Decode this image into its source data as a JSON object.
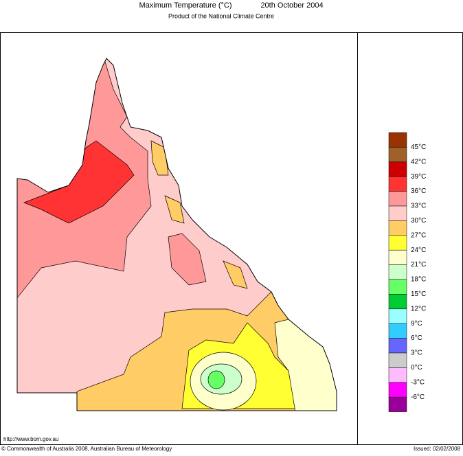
{
  "header": {
    "title": "Maximum Temperature (°C)",
    "date": "20th October 2004",
    "subtitle": "Product of the National Climate Centre"
  },
  "legend": {
    "colors": [
      "#993300",
      "#a0602c",
      "#cc0000",
      "#ff3333",
      "#ff9999",
      "#ffcccc",
      "#ffcc66",
      "#ffff33",
      "#ffffcc",
      "#ccffcc",
      "#66ff66",
      "#00cc33",
      "#99ffff",
      "#33ccff",
      "#6666ff",
      "#cccccc",
      "#ffbbff",
      "#ff00ff",
      "#990099"
    ],
    "labels": [
      "45°C",
      "42°C",
      "39°C",
      "36°C",
      "33°C",
      "30°C",
      "27°C",
      "24°C",
      "21°C",
      "18°C",
      "15°C",
      "12°C",
      "9°C",
      "6°C",
      "3°C",
      "0°C",
      "-3°C",
      "-6°C"
    ]
  },
  "footer": {
    "url": "http://www.bom.gov.au",
    "copyright": "© Commonwealth of Australia 2008, Australian Bureau of Meteorology",
    "issued": "Issued: 02/02/2008"
  }
}
